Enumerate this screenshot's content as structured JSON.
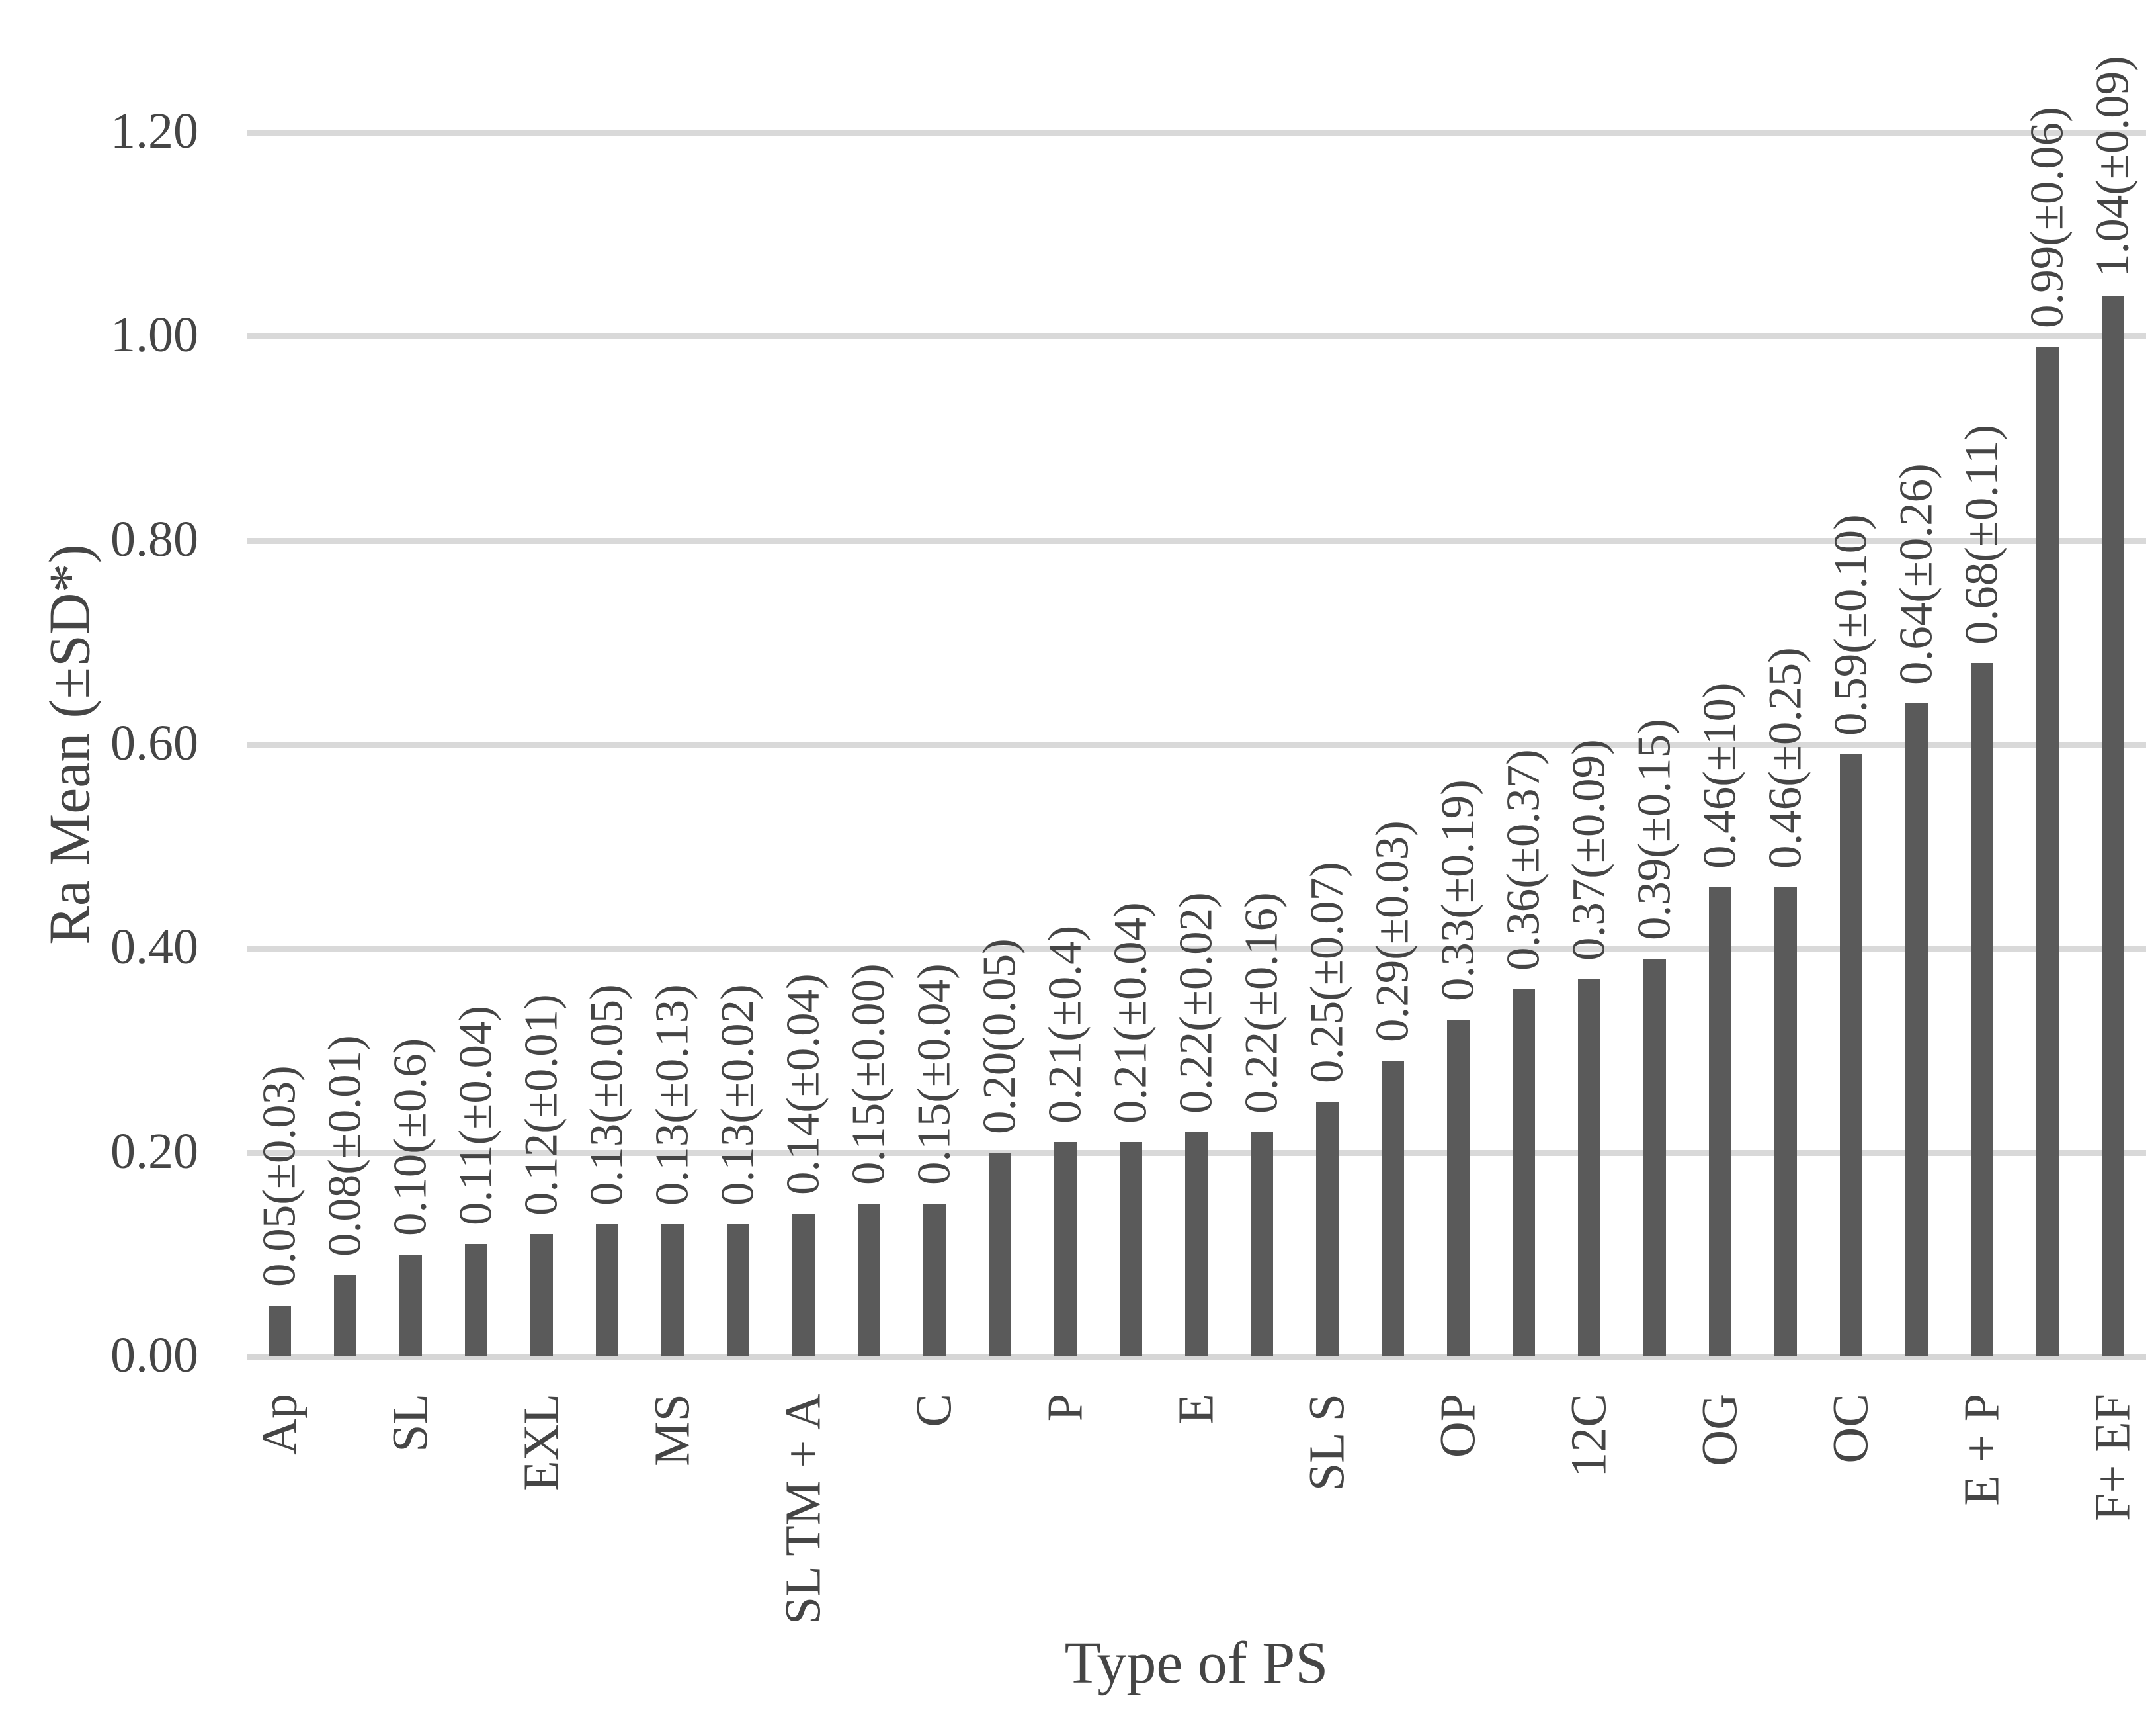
{
  "chart_data": {
    "type": "bar",
    "title": "",
    "xlabel": "Type of PS",
    "ylabel": "Ra Mean (±SD*)",
    "ylim": [
      0,
      1.2
    ],
    "ytick_step": 0.2,
    "ytick_labels": [
      "0.00",
      "0.20",
      "0.40",
      "0.60",
      "0.80",
      "1.00",
      "1.20"
    ],
    "grid": true,
    "legend": "none",
    "value_label_rotation_deg": 90,
    "category_label_rotation_deg": 90,
    "colors": {
      "bar": "#5a5a5a",
      "gridline": "#d9d9d9",
      "axis_line": "#d6d6d6",
      "text": "#454545"
    },
    "bars": [
      {
        "category": "Ap",
        "value": 0.05,
        "label": "0.05(±0.03)"
      },
      {
        "category": "",
        "value": 0.08,
        "label": "0.08(±0.01)"
      },
      {
        "category": "SL",
        "value": 0.1,
        "label": "0.10(±0.6)"
      },
      {
        "category": "",
        "value": 0.11,
        "label": "0.11(±0.04)"
      },
      {
        "category": "EXL",
        "value": 0.12,
        "label": "0.12(±0.01)"
      },
      {
        "category": "",
        "value": 0.13,
        "label": "0.13(±0.05)"
      },
      {
        "category": "MS",
        "value": 0.13,
        "label": "0.13(±0.13)"
      },
      {
        "category": "",
        "value": 0.13,
        "label": "0.13(±0.02)"
      },
      {
        "category": "SL TM + A",
        "value": 0.14,
        "label": "0.14(±0.04)"
      },
      {
        "category": "",
        "value": 0.15,
        "label": "0.15(±0.00)"
      },
      {
        "category": "C",
        "value": 0.15,
        "label": "0.15(±0.04)"
      },
      {
        "category": "",
        "value": 0.2,
        "label": "0.20(0.05)"
      },
      {
        "category": "P",
        "value": 0.21,
        "label": "0.21(±0.4)"
      },
      {
        "category": "",
        "value": 0.21,
        "label": "0.21(±0.04)"
      },
      {
        "category": "E",
        "value": 0.22,
        "label": "0.22(±0.02)"
      },
      {
        "category": "",
        "value": 0.22,
        "label": "0.22(±0.16)"
      },
      {
        "category": "SL S",
        "value": 0.25,
        "label": "0.25(±0.07)"
      },
      {
        "category": "",
        "value": 0.29,
        "label": "0.29(±0.03)"
      },
      {
        "category": "OP",
        "value": 0.33,
        "label": "0.33(±0.19)"
      },
      {
        "category": "",
        "value": 0.36,
        "label": "0.36(±0.37)"
      },
      {
        "category": "12C",
        "value": 0.37,
        "label": "0.37(±0.09)"
      },
      {
        "category": "",
        "value": 0.39,
        "label": "0.39(±0.15)"
      },
      {
        "category": "OG",
        "value": 0.46,
        "label": "0.46(±10)"
      },
      {
        "category": "",
        "value": 0.46,
        "label": "0.46(±0.25)"
      },
      {
        "category": "OC",
        "value": 0.59,
        "label": "0.59(±0.10)"
      },
      {
        "category": "",
        "value": 0.64,
        "label": "0.64(±0.26)"
      },
      {
        "category": "E + P",
        "value": 0.68,
        "label": "0.68(±0.11)"
      },
      {
        "category": "",
        "value": 0.99,
        "label": "0.99(±0.06)"
      },
      {
        "category": "F+ EF",
        "value": 1.04,
        "label": "1.04(±0.09)"
      }
    ]
  }
}
